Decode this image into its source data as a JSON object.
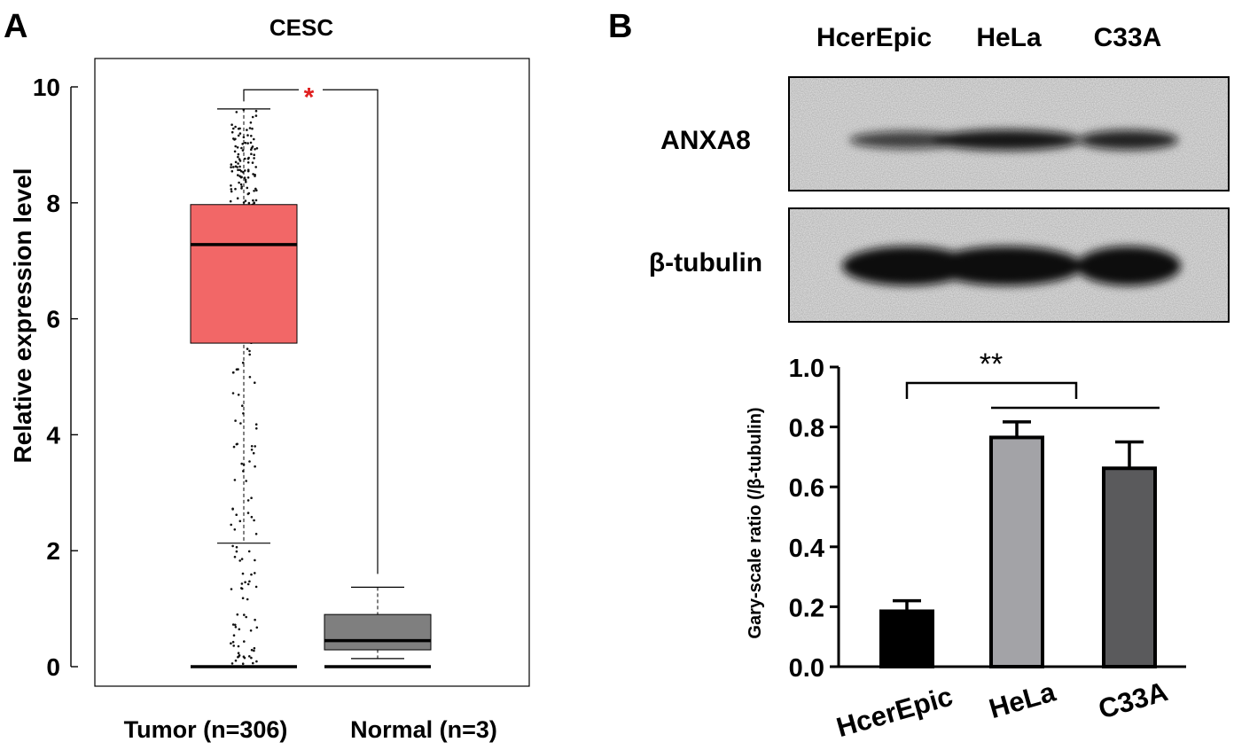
{
  "panels": {
    "a": {
      "letter": "A"
    },
    "b": {
      "letter": "B"
    }
  },
  "blot": {
    "lanes": [
      "HcerEpic",
      "HeLa",
      "C33A"
    ],
    "rows": [
      "ANXA8",
      "β-tubulin"
    ],
    "band_intensity": [
      [
        0.55,
        0.9,
        0.8
      ],
      [
        1.0,
        1.0,
        1.0
      ]
    ],
    "band_color": "#111111"
  },
  "chart_data": [
    {
      "type": "box",
      "title": "CESC",
      "xlabel": "",
      "ylabel": "Relative expression level",
      "ylim": [
        -0.2,
        10.5
      ],
      "yticks": [
        0,
        2,
        4,
        6,
        8,
        10
      ],
      "grid": false,
      "categories": [
        "Tumor (n=306)",
        "Normal (n=3)"
      ],
      "boxes": [
        {
          "category": "Tumor (n=306)",
          "whisker_low": 2.13,
          "q1": 5.58,
          "median": 7.28,
          "q3": 7.97,
          "whisker_high": 9.62,
          "color": "#f26767",
          "zero_line": 0
        },
        {
          "category": "Normal (n=3)",
          "whisker_low": 0.14,
          "q1": 0.29,
          "median": 0.45,
          "q3": 0.9,
          "whisker_high": 1.37,
          "color": "#7f7f7f",
          "zero_line": 0
        }
      ],
      "significance": {
        "label": "*",
        "color": "#e02020",
        "y": 9.95
      }
    },
    {
      "type": "bar",
      "xlabel": "",
      "ylabel": "Gary-scale ratio (/β-tubulin)",
      "ylim": [
        0,
        1.0
      ],
      "yticks": [
        "0.0",
        "0.2",
        "0.4",
        "0.6",
        "0.8",
        "1.0"
      ],
      "grid": false,
      "categories": [
        "HcerEpic",
        "HeLa",
        "C33A"
      ],
      "values": [
        0.185,
        0.765,
        0.662
      ],
      "errors": [
        0.035,
        0.052,
        0.088
      ],
      "colors": [
        "#000000",
        "#a3a3a7",
        "#5a5a5c"
      ],
      "significance": {
        "label": "**"
      }
    }
  ]
}
